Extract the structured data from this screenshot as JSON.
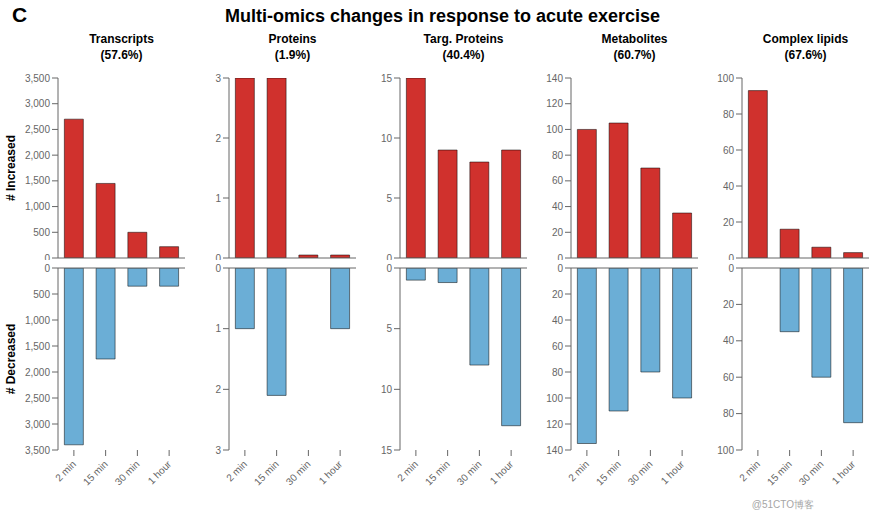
{
  "title": "Multi-omics changes in response to acute exercise",
  "annotations": [
    "C",
    "@51CTO博客"
  ],
  "chart_data": [
    {
      "type": "bar",
      "title": "Transcripts\n(57.6%)",
      "ylabel": "# Increased",
      "categories": [
        "2 min",
        "15 min",
        "30 min",
        "1 hour"
      ],
      "values": [
        2700,
        1450,
        500,
        220
      ],
      "color": "#d0312d",
      "ylim": [
        0,
        3500
      ],
      "yticks": [
        0,
        500,
        {
          "value": 1000,
          "label": "1,000"
        },
        {
          "value": 1500,
          "label": "1,500"
        },
        {
          "value": 2000,
          "label": "2,000"
        },
        {
          "value": 2500,
          "label": "2,500"
        },
        {
          "value": 3000,
          "label": "3,000"
        },
        {
          "value": 3500,
          "label": "3,500"
        }
      ],
      "tick_labels": "y"
    },
    {
      "type": "bar",
      "title": "Proteins\n(1.9%)",
      "categories": [
        "2 min",
        "15 min",
        "30 min",
        "1 hour"
      ],
      "values": [
        3,
        3,
        0.05,
        0.05
      ],
      "color": "#d0312d",
      "ylim": [
        0,
        3
      ],
      "yticks": [
        0,
        1,
        2,
        3
      ],
      "tick_labels": "y"
    },
    {
      "type": "bar",
      "title": "Targ. Proteins\n(40.4%)",
      "categories": [
        "2 min",
        "15 min",
        "30 min",
        "1 hour"
      ],
      "values": [
        15,
        9,
        8,
        9
      ],
      "color": "#d0312d",
      "ylim": [
        0,
        15
      ],
      "yticks": [
        0,
        5,
        10,
        15
      ],
      "tick_labels": "y"
    },
    {
      "type": "bar",
      "title": "Metabolites\n(60.7%)",
      "categories": [
        "2 min",
        "15 min",
        "30 min",
        "1 hour"
      ],
      "values": [
        100,
        105,
        70,
        35
      ],
      "color": "#d0312d",
      "ylim": [
        0,
        140
      ],
      "yticks": [
        0,
        20,
        40,
        60,
        80,
        100,
        120,
        140
      ],
      "tick_labels": "y"
    },
    {
      "type": "bar",
      "title": "Complex lipids\n(67.6%)",
      "categories": [
        "2 min",
        "15 min",
        "30 min",
        "1 hour"
      ],
      "values": [
        93,
        16,
        6,
        3
      ],
      "color": "#d0312d",
      "ylim": [
        0,
        100
      ],
      "yticks": [
        0,
        20,
        40,
        60,
        80,
        100
      ],
      "tick_labels": "y"
    },
    {
      "type": "bar",
      "ylabel": "# Decreased",
      "categories": [
        "2 min",
        "15 min",
        "30 min",
        "1 hour"
      ],
      "values": [
        3400,
        1750,
        350,
        350
      ],
      "color": "#6baed6",
      "ylim": [
        3500,
        0
      ],
      "yticks": [
        0,
        500,
        {
          "value": 1000,
          "label": "1,000"
        },
        {
          "value": 1500,
          "label": "1,500"
        },
        {
          "value": 2000,
          "label": "2,000"
        },
        {
          "value": 2500,
          "label": "2,500"
        },
        {
          "value": 3000,
          "label": "3,000"
        },
        {
          "value": 3500,
          "label": "3,500"
        }
      ]
    },
    {
      "type": "bar",
      "categories": [
        "2 min",
        "15 min",
        "30 min",
        "1 hour"
      ],
      "values": [
        1.0,
        2.1,
        0,
        1.0
      ],
      "color": "#6baed6",
      "ylim": [
        3,
        0
      ],
      "yticks": [
        0,
        1,
        2,
        3
      ]
    },
    {
      "type": "bar",
      "categories": [
        "2 min",
        "15 min",
        "30 min",
        "1 hour"
      ],
      "values": [
        1.0,
        1.2,
        8,
        13
      ],
      "color": "#6baed6",
      "ylim": [
        15,
        0
      ],
      "yticks": [
        0,
        5,
        10,
        15
      ]
    },
    {
      "type": "bar",
      "categories": [
        "2 min",
        "15 min",
        "30 min",
        "1 hour"
      ],
      "values": [
        135,
        110,
        80,
        100
      ],
      "color": "#6baed6",
      "ylim": [
        140,
        0
      ],
      "yticks": [
        0,
        20,
        40,
        60,
        80,
        100,
        120,
        140
      ]
    },
    {
      "type": "bar",
      "categories": [
        "2 min",
        "15 min",
        "30 min",
        "1 hour"
      ],
      "values": [
        0,
        35,
        60,
        85
      ],
      "color": "#6baed6",
      "ylim": [
        100,
        0
      ],
      "yticks": [
        0,
        20,
        40,
        60,
        80,
        100
      ]
    }
  ]
}
